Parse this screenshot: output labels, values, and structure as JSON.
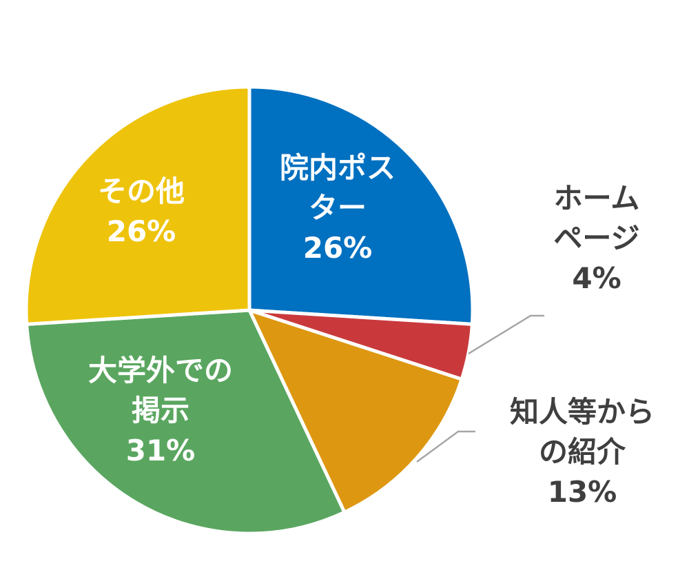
{
  "chart_data": {
    "type": "pie",
    "slices": [
      {
        "label_lines": [
          "院内ポス",
          "ター"
        ],
        "value": 26,
        "pct": "26%",
        "color": "#0070c0"
      },
      {
        "label_lines": [
          "ホーム",
          "ページ"
        ],
        "value": 4,
        "pct": "4%",
        "color": "#c9393c"
      },
      {
        "label_lines": [
          "知人等から",
          "の紹介"
        ],
        "value": 13,
        "pct": "13%",
        "color": "#dd9711"
      },
      {
        "label_lines": [
          "大学外での",
          "掲示"
        ],
        "value": 31,
        "pct": "31%",
        "color": "#5aa660"
      },
      {
        "label_lines": [
          "その他"
        ],
        "value": 26,
        "pct": "26%",
        "color": "#eec30b"
      }
    ]
  }
}
